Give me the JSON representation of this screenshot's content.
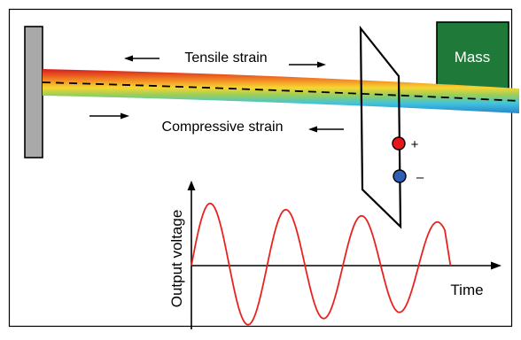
{
  "labels": {
    "tensile": "Tensile strain",
    "compressive": "Compressive strain",
    "mass": "Mass",
    "plus": "+",
    "minus": "–",
    "y_axis": "Output voltage",
    "x_axis": "Time"
  },
  "colors": {
    "frame": "#000000",
    "clamp": "#a9a9a9",
    "mass": "#1f7a3a",
    "mass_text": "#ffffff",
    "terminal_pos": "#e8161b",
    "terminal_neg": "#2f5fb4",
    "signal": "#e8231f",
    "beam_gradient": [
      "#d7191c",
      "#f07d22",
      "#f7d531",
      "#9ccf55",
      "#3ec3e0",
      "#2b83c6"
    ]
  },
  "signal": {
    "shape": "damped sinusoid",
    "cycles": 4
  }
}
